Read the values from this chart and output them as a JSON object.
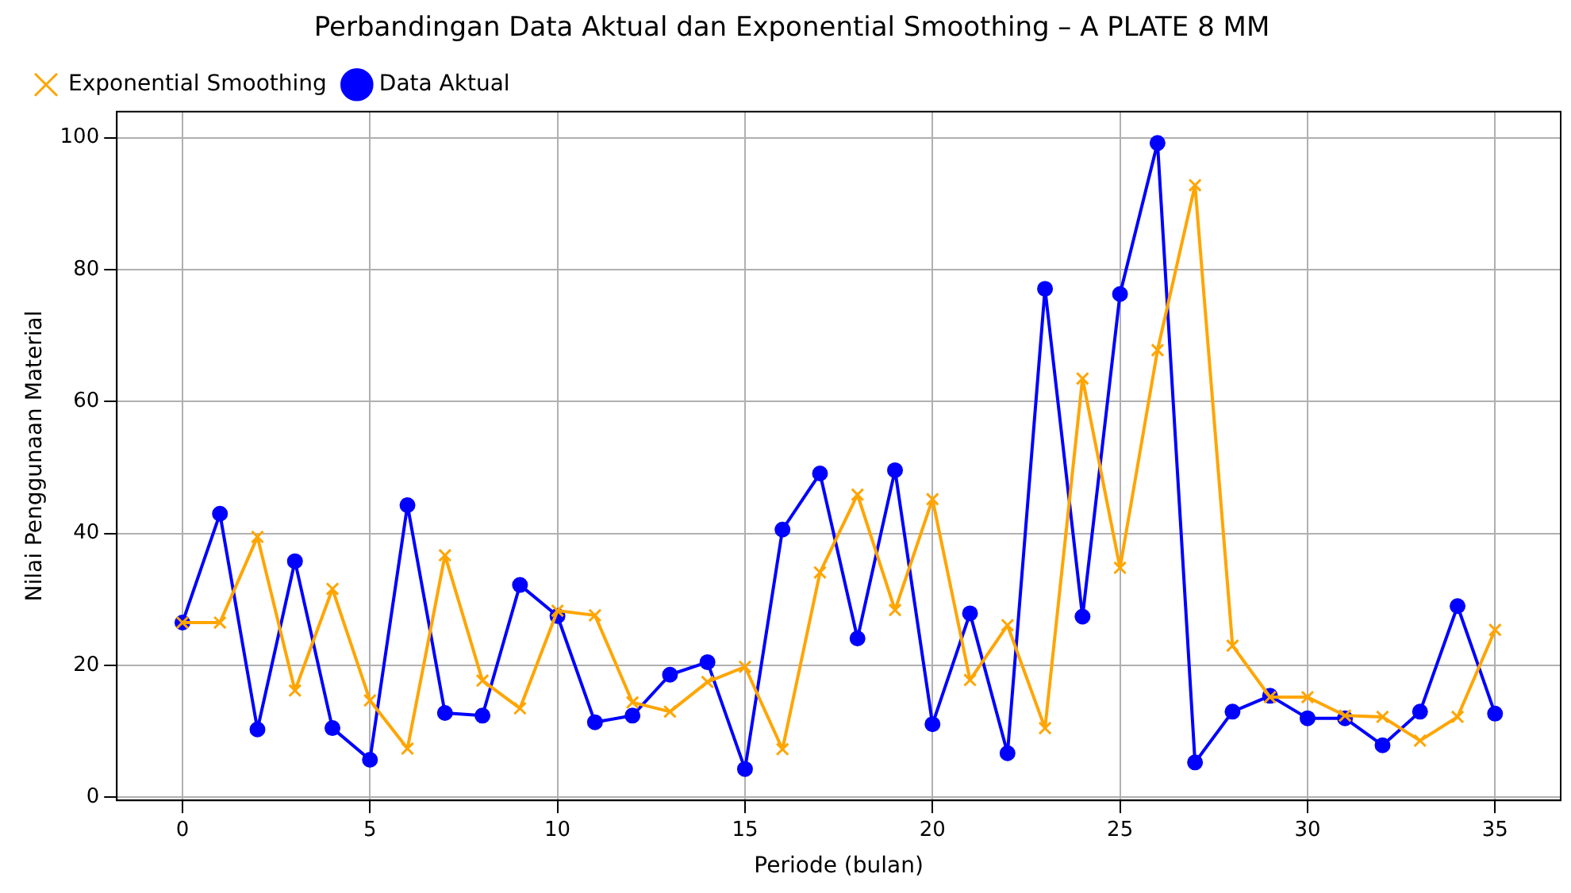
{
  "chart_data": {
    "type": "line",
    "title": "Perbandingan Data Aktual dan Exponential Smoothing – A PLATE 8 MM",
    "xlabel": "Periode (bulan)",
    "ylabel": "Nilai Penggunaan Material",
    "x": [
      0,
      1,
      2,
      3,
      4,
      5,
      6,
      7,
      8,
      9,
      10,
      11,
      12,
      13,
      14,
      15,
      16,
      17,
      18,
      19,
      20,
      21,
      22,
      23,
      24,
      25,
      26,
      27,
      28,
      29,
      30,
      31,
      32,
      33,
      34,
      35
    ],
    "series": [
      {
        "name": "Data Aktual",
        "color": "#0000ff",
        "marker": "circle",
        "values": [
          26.5,
          43.0,
          10.3,
          35.8,
          10.5,
          5.7,
          44.3,
          12.8,
          12.4,
          32.2,
          27.5,
          11.4,
          12.4,
          18.6,
          20.5,
          4.3,
          40.6,
          49.1,
          24.1,
          49.6,
          11.1,
          27.9,
          6.7,
          77.1,
          27.4,
          76.3,
          99.2,
          5.3,
          13.0,
          15.4,
          12.0,
          12.0,
          7.9,
          13.0,
          29.0,
          12.7
        ]
      },
      {
        "name": "Exponential Smoothing",
        "color": "#ffa500",
        "marker": "cross",
        "values": [
          26.5,
          26.5,
          39.5,
          16.2,
          31.6,
          14.7,
          7.4,
          36.7,
          17.7,
          13.5,
          28.3,
          27.6,
          14.4,
          13.0,
          17.5,
          19.8,
          7.3,
          34.1,
          45.9,
          28.4,
          45.2,
          17.8,
          26.1,
          10.5,
          63.5,
          34.8,
          67.8,
          92.8,
          23.0,
          15.2,
          15.2,
          12.4,
          12.2,
          8.6,
          12.2,
          25.4
        ]
      }
    ],
    "xlim": [
      -1.75,
      36.75
    ],
    "xticks": [
      0,
      5,
      10,
      15,
      20,
      25,
      30,
      35
    ],
    "ylim": [
      -0.45,
      103.95
    ],
    "yticks": [
      0,
      20,
      40,
      60,
      80,
      100
    ],
    "grid": true,
    "legend": "top left",
    "line_style": "solid"
  }
}
